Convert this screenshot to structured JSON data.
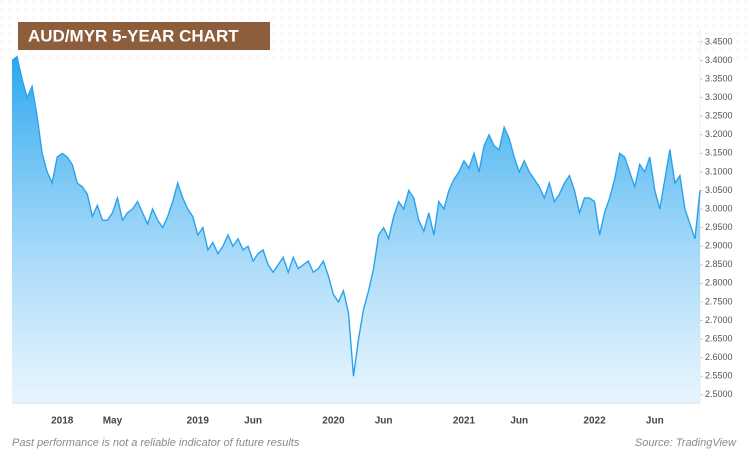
{
  "chart_data": {
    "type": "area",
    "title": "AUD/MYR 5-YEAR CHART",
    "note": "Past performance is not a reliable indicator of future results",
    "source": "Source: TradingView",
    "color": "#2aa3ec",
    "title_color": "#8c5e3c",
    "categories": [
      null,
      null,
      null,
      null,
      null,
      null,
      null,
      null,
      null,
      null,
      "2018",
      null,
      null,
      null,
      null,
      null,
      null,
      null,
      null,
      null,
      "May",
      null,
      null,
      null,
      null,
      null,
      null,
      null,
      null,
      null,
      null,
      null,
      null,
      null,
      null,
      null,
      null,
      "2019",
      null,
      null,
      null,
      null,
      null,
      null,
      null,
      null,
      null,
      null,
      "Jun",
      null,
      null,
      null,
      null,
      null,
      null,
      null,
      null,
      null,
      null,
      null,
      null,
      null,
      null,
      null,
      "2020",
      null,
      null,
      null,
      null,
      null,
      null,
      null,
      null,
      null,
      "Jun",
      null,
      null,
      null,
      null,
      null,
      null,
      null,
      null,
      null,
      null,
      null,
      null,
      null,
      null,
      null,
      "2021",
      null,
      null,
      null,
      null,
      null,
      null,
      null,
      null,
      null,
      null,
      "Jun",
      null,
      null,
      null,
      null,
      null,
      null,
      null,
      null,
      null,
      null,
      null,
      null,
      null,
      null,
      "2022",
      null,
      null,
      null,
      null,
      null,
      null,
      null,
      null,
      null,
      null,
      null,
      "Jun",
      null,
      null,
      null,
      null,
      null,
      null,
      null,
      null,
      null
    ],
    "values": [
      3.4,
      3.41,
      3.35,
      3.3,
      3.33,
      3.25,
      3.15,
      3.1,
      3.07,
      3.14,
      3.15,
      3.14,
      3.12,
      3.07,
      3.06,
      3.04,
      2.98,
      3.01,
      2.97,
      2.97,
      2.99,
      3.03,
      2.97,
      2.99,
      3.0,
      3.02,
      2.99,
      2.96,
      3.0,
      2.97,
      2.95,
      2.98,
      3.02,
      3.07,
      3.03,
      3.0,
      2.98,
      2.93,
      2.95,
      2.89,
      2.91,
      2.88,
      2.9,
      2.93,
      2.9,
      2.92,
      2.89,
      2.9,
      2.86,
      2.88,
      2.89,
      2.85,
      2.83,
      2.85,
      2.87,
      2.83,
      2.87,
      2.84,
      2.85,
      2.86,
      2.83,
      2.84,
      2.86,
      2.82,
      2.77,
      2.75,
      2.78,
      2.72,
      2.55,
      2.65,
      2.73,
      2.78,
      2.84,
      2.93,
      2.95,
      2.92,
      2.98,
      3.02,
      3.0,
      3.05,
      3.03,
      2.97,
      2.94,
      2.99,
      2.93,
      3.02,
      3.0,
      3.05,
      3.08,
      3.1,
      3.13,
      3.11,
      3.15,
      3.1,
      3.17,
      3.2,
      3.17,
      3.16,
      3.22,
      3.19,
      3.14,
      3.1,
      3.13,
      3.1,
      3.08,
      3.06,
      3.03,
      3.07,
      3.02,
      3.04,
      3.07,
      3.09,
      3.05,
      2.99,
      3.03,
      3.03,
      3.02,
      2.93,
      2.99,
      3.03,
      3.08,
      3.15,
      3.14,
      3.1,
      3.06,
      3.12,
      3.1,
      3.14,
      3.05,
      3.0,
      3.08,
      3.16,
      3.07,
      3.09,
      3.0,
      2.96,
      2.92,
      3.05
    ],
    "ylim": [
      2.478,
      3.482
    ],
    "yticks": [
      {
        "value": 2.5,
        "label": "2.5000"
      },
      {
        "value": 2.55,
        "label": "2.5500"
      },
      {
        "value": 2.6,
        "label": "2.6000"
      },
      {
        "value": 2.65,
        "label": "2.6500"
      },
      {
        "value": 2.7,
        "label": "2.7000"
      },
      {
        "value": 2.75,
        "label": "2.7500"
      },
      {
        "value": 2.8,
        "label": "2.8000"
      },
      {
        "value": 2.85,
        "label": "2.8500"
      },
      {
        "value": 2.9,
        "label": "2.9000"
      },
      {
        "value": 2.95,
        "label": "2.9500"
      },
      {
        "value": 3.0,
        "label": "3.0000"
      },
      {
        "value": 3.05,
        "label": "3.0500"
      },
      {
        "value": 3.1,
        "label": "3.1000"
      },
      {
        "value": 3.15,
        "label": "3.1500"
      },
      {
        "value": 3.2,
        "label": "3.2000"
      },
      {
        "value": 3.25,
        "label": "3.2500"
      },
      {
        "value": 3.3,
        "label": "3.3000"
      },
      {
        "value": 3.35,
        "label": "3.3500"
      },
      {
        "value": 3.4,
        "label": "3.4000"
      },
      {
        "value": 3.45,
        "label": "3.4500"
      }
    ],
    "grid": false
  }
}
